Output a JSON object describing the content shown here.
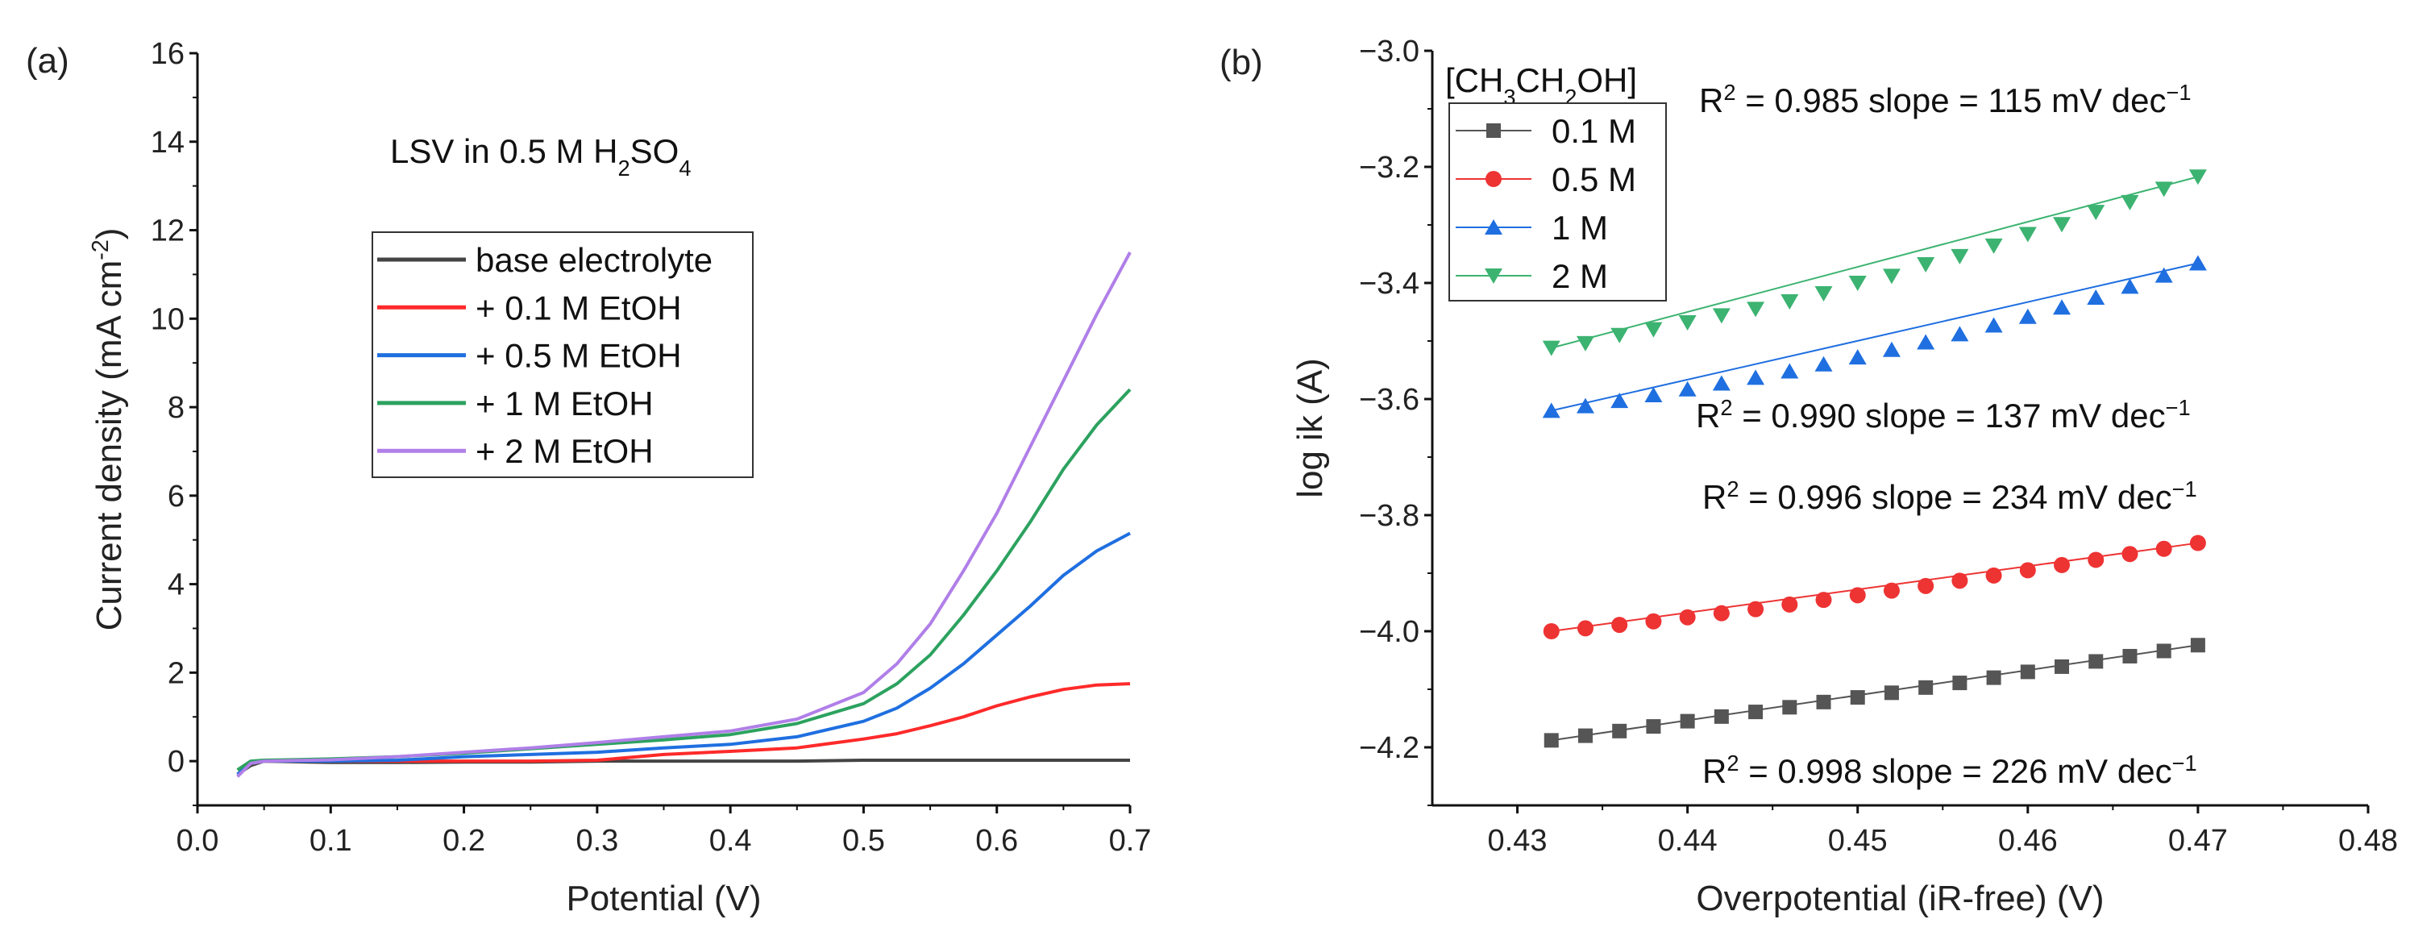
{
  "chart_data": [
    {
      "panel_label": "(a)",
      "type": "line",
      "title": [
        {
          "t": "LSV in 0.5 M H"
        },
        {
          "t": "2",
          "s": "sub"
        },
        {
          "t": "SO"
        },
        {
          "t": "4",
          "s": "sub"
        }
      ],
      "xlabel": [
        {
          "t": "Potential (V)"
        }
      ],
      "ylabel": [
        {
          "t": "Current density (mA cm"
        },
        {
          "t": "-2",
          "s": "sup"
        },
        {
          "t": ")"
        }
      ],
      "xlim": [
        0.0,
        0.7
      ],
      "ylim": [
        -1,
        16
      ],
      "xticks": [
        "0.0",
        "0.1",
        "0.2",
        "0.3",
        "0.4",
        "0.5",
        "0.6",
        "0.7"
      ],
      "yticks": [
        "0",
        "2",
        "4",
        "6",
        "8",
        "10",
        "12",
        "14",
        "16"
      ],
      "legend_position": "center",
      "x": [
        0.03,
        0.04,
        0.05,
        0.1,
        0.15,
        0.2,
        0.25,
        0.3,
        0.35,
        0.4,
        0.45,
        0.5,
        0.525,
        0.55,
        0.575,
        0.6,
        0.625,
        0.65,
        0.675,
        0.7
      ],
      "series": [
        {
          "name": "base electrolyte",
          "color": "#444444",
          "values": [
            -0.3,
            -0.1,
            0,
            -0.03,
            -0.03,
            -0.02,
            -0.02,
            0,
            0,
            0,
            0,
            0.02,
            0.02,
            0.02,
            0.02,
            0.02,
            0.02,
            0.02,
            0.02,
            0.02
          ]
        },
        {
          "name": "+ 0.1 M EtOH",
          "color": "#ff2a2a",
          "values": [
            -0.3,
            -0.05,
            0,
            0,
            0,
            0,
            0,
            0.02,
            0.15,
            0.22,
            0.3,
            0.5,
            0.62,
            0.8,
            1.0,
            1.25,
            1.45,
            1.62,
            1.72,
            1.75
          ]
        },
        {
          "name": "+ 0.5 M EtOH",
          "color": "#1f6fe0",
          "values": [
            -0.3,
            -0.05,
            0,
            0,
            0.02,
            0.1,
            0.15,
            0.2,
            0.3,
            0.38,
            0.55,
            0.9,
            1.2,
            1.65,
            2.2,
            2.85,
            3.5,
            4.2,
            4.75,
            5.15
          ]
        },
        {
          "name": "+ 1 M EtOH",
          "color": "#2ca25f",
          "values": [
            -0.2,
            0,
            0.02,
            0.05,
            0.1,
            0.18,
            0.28,
            0.38,
            0.48,
            0.6,
            0.85,
            1.3,
            1.75,
            2.4,
            3.3,
            4.3,
            5.4,
            6.6,
            7.6,
            8.4
          ]
        },
        {
          "name": "+ 2 M EtOH",
          "color": "#b07fe8",
          "values": [
            -0.35,
            -0.05,
            0,
            0.03,
            0.1,
            0.2,
            0.3,
            0.42,
            0.55,
            0.68,
            0.95,
            1.55,
            2.2,
            3.1,
            4.3,
            5.6,
            7.1,
            8.6,
            10.1,
            11.5
          ]
        }
      ]
    },
    {
      "panel_label": "(b)",
      "type": "scatter",
      "xlabel": [
        {
          "t": "Overpotential (iR-free) (V)"
        }
      ],
      "ylabel": [
        {
          "t": "log ik (A)"
        }
      ],
      "xlim": [
        0.425,
        0.48
      ],
      "ylim": [
        -4.3,
        -3.0
      ],
      "xticks": [
        "0.43",
        "0.44",
        "0.45",
        "0.46",
        "0.47",
        "0.48"
      ],
      "yticks": [
        "-4.2",
        "-4.0",
        "-3.8",
        "-3.6",
        "-3.4",
        "-3.2",
        "-3.0"
      ],
      "legend_title": [
        {
          "t": "[CH"
        },
        {
          "t": "3",
          "s": "sub"
        },
        {
          "t": "CH"
        },
        {
          "t": "2",
          "s": "sub"
        },
        {
          "t": "OH]"
        }
      ],
      "legend_position": "top-left",
      "x": [
        0.432,
        0.434,
        0.436,
        0.438,
        0.44,
        0.442,
        0.444,
        0.446,
        0.448,
        0.45,
        0.452,
        0.454,
        0.456,
        0.458,
        0.46,
        0.462,
        0.464,
        0.466,
        0.468,
        0.47
      ],
      "series": [
        {
          "name": "0.1 M",
          "color": "#555555",
          "marker": "square",
          "values": [
            -4.188,
            -4.18,
            -4.172,
            -4.164,
            -4.155,
            -4.147,
            -4.139,
            -4.131,
            -4.122,
            -4.114,
            -4.106,
            -4.097,
            -4.089,
            -4.08,
            -4.07,
            -4.061,
            -4.052,
            -4.043,
            -4.034,
            -4.024
          ],
          "annotation": {
            "r2": "0.998",
            "slope": "226",
            "color": "#222222"
          }
        },
        {
          "name": "0.5 M",
          "color": "#ee3333",
          "marker": "circle",
          "values": [
            -4.0,
            -3.995,
            -3.989,
            -3.983,
            -3.976,
            -3.969,
            -3.962,
            -3.954,
            -3.946,
            -3.938,
            -3.93,
            -3.922,
            -3.913,
            -3.904,
            -3.895,
            -3.886,
            -3.877,
            -3.867,
            -3.858,
            -3.848
          ],
          "annotation": {
            "r2": "0.996",
            "slope": "234",
            "color": "#ff1a1a"
          }
        },
        {
          "name": "1 M",
          "color": "#1f6fe0",
          "marker": "triangle-up",
          "values": [
            -3.62,
            -3.612,
            -3.603,
            -3.593,
            -3.583,
            -3.573,
            -3.563,
            -3.552,
            -3.54,
            -3.528,
            -3.515,
            -3.502,
            -3.488,
            -3.473,
            -3.458,
            -3.442,
            -3.425,
            -3.406,
            -3.387,
            -3.366
          ],
          "annotation": {
            "r2": "0.990",
            "slope": "137",
            "color": "#1a1aff"
          }
        },
        {
          "name": "2 M",
          "color": "#3cb371",
          "marker": "triangle-down",
          "values": [
            -3.512,
            -3.504,
            -3.49,
            -3.48,
            -3.468,
            -3.456,
            -3.445,
            -3.432,
            -3.418,
            -3.4,
            -3.388,
            -3.368,
            -3.354,
            -3.336,
            -3.316,
            -3.299,
            -3.278,
            -3.261,
            -3.238,
            -3.217
          ],
          "annotation": {
            "r2": "0.985",
            "slope": "115",
            "color": "#7cb82f"
          }
        }
      ],
      "annotation_template": {
        "r": "R",
        "sup": "2",
        "eq": " = ",
        "mid": " slope = ",
        "unit": " mV dec",
        "unit_sup": "−1"
      }
    }
  ]
}
